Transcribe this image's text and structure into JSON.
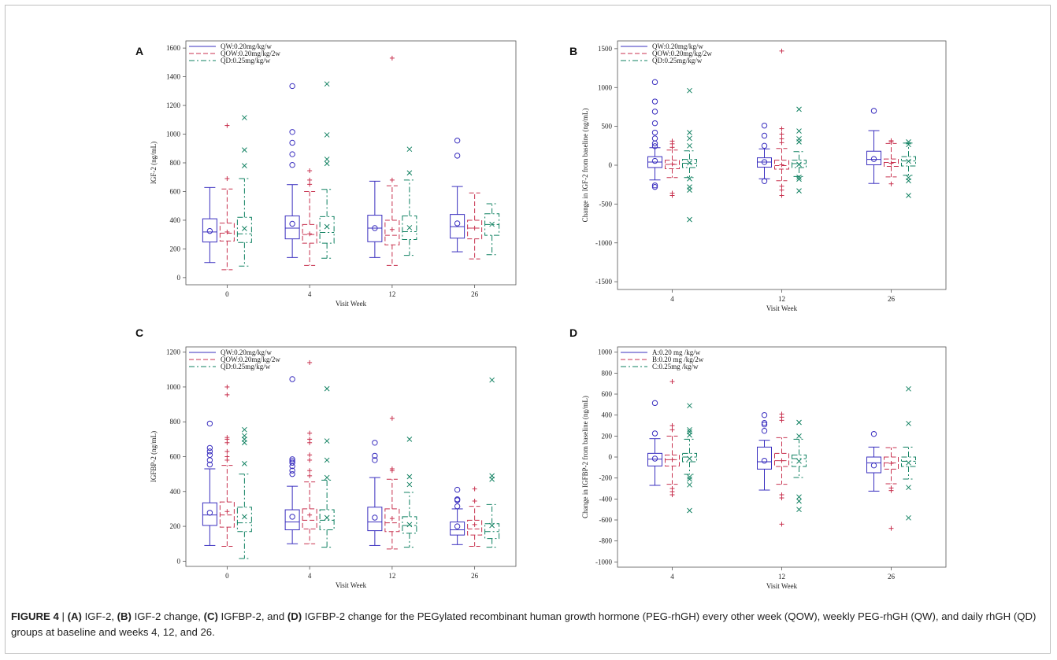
{
  "figure": {
    "caption": {
      "figure_label": "FIGURE 4",
      "separator": "|",
      "parts": [
        {
          "bold": "(A)",
          "text": " IGF-2, "
        },
        {
          "bold": "(B)",
          "text": " IGF-2 change, "
        },
        {
          "bold": "(C)",
          "text": " IGFBP-2, and "
        },
        {
          "bold": "(D)",
          "text": " IGFBP-2 change for the PEGylated recombinant human growth hormone (PEG-rhGH) every other week (QOW), weekly PEG-rhGH (QW), and daily rhGH (QD) groups at baseline and weeks 4, 12, and 26."
        }
      ]
    }
  },
  "colors": {
    "QW": "#3a2fbf",
    "QOW": "#c8324f",
    "QD": "#0f8060",
    "frame": "#555555"
  },
  "chart_data": [
    {
      "panel": "A",
      "type": "box",
      "ylabel": "IGF-2  (ng/mL)",
      "xlabel": "Visit Week",
      "ylim": [
        -50,
        1650
      ],
      "yticks": [
        0,
        200,
        400,
        600,
        800,
        1000,
        1200,
        1400,
        1600
      ],
      "categories": [
        "0",
        "4",
        "12",
        "26"
      ],
      "legend_position": "top-left",
      "series": [
        {
          "name": "QW:0.20mg/kg/w",
          "style": "solid",
          "marker": "circle",
          "boxes": [
            {
              "min": 105,
              "q1": 248,
              "median": 318,
              "q3": 410,
              "max": 628,
              "mean": 325,
              "outliers": []
            },
            {
              "min": 140,
              "q1": 270,
              "median": 345,
              "q3": 430,
              "max": 648,
              "mean": 375,
              "outliers": [
                785,
                860,
                940,
                1015,
                1335
              ]
            },
            {
              "min": 140,
              "q1": 250,
              "median": 345,
              "q3": 435,
              "max": 672,
              "mean": 345,
              "outliers": []
            },
            {
              "min": 180,
              "q1": 275,
              "median": 355,
              "q3": 440,
              "max": 635,
              "mean": 378,
              "outliers": [
                850,
                955
              ]
            }
          ]
        },
        {
          "name": "QOW:0.20mg/kg/2w",
          "style": "dashed",
          "marker": "plus",
          "boxes": [
            {
              "min": 55,
              "q1": 255,
              "median": 310,
              "q3": 380,
              "max": 618,
              "mean": 318,
              "outliers": [
                690,
                1060
              ]
            },
            {
              "min": 85,
              "q1": 240,
              "median": 300,
              "q3": 370,
              "max": 600,
              "mean": 305,
              "outliers": [
                650,
                680,
                745
              ]
            },
            {
              "min": 85,
              "q1": 228,
              "median": 295,
              "q3": 400,
              "max": 640,
              "mean": 335,
              "outliers": [
                680,
                1530
              ]
            },
            {
              "min": 130,
              "q1": 270,
              "median": 345,
              "q3": 400,
              "max": 590,
              "mean": 345,
              "outliers": []
            }
          ]
        },
        {
          "name": "QD:0.25mg/kg/w",
          "style": "dashdot",
          "marker": "x",
          "boxes": [
            {
              "min": 80,
              "q1": 245,
              "median": 305,
              "q3": 420,
              "max": 690,
              "mean": 342,
              "outliers": [
                780,
                890,
                1115
              ]
            },
            {
              "min": 135,
              "q1": 240,
              "median": 315,
              "q3": 425,
              "max": 615,
              "mean": 355,
              "outliers": [
                795,
                825,
                995,
                1350
              ]
            },
            {
              "min": 155,
              "q1": 265,
              "median": 320,
              "q3": 430,
              "max": 680,
              "mean": 348,
              "outliers": [
                730,
                895
              ]
            },
            {
              "min": 160,
              "q1": 295,
              "median": 370,
              "q3": 445,
              "max": 515,
              "mean": 372,
              "outliers": []
            }
          ]
        }
      ]
    },
    {
      "panel": "B",
      "type": "box",
      "ylabel": "Change in IGF-2 from baseline  (ng/mL)",
      "xlabel": "Visit Week",
      "ylim": [
        -1600,
        1600
      ],
      "yticks": [
        -1500,
        -1000,
        -500,
        0,
        500,
        1000,
        1500
      ],
      "categories": [
        "4",
        "12",
        "26"
      ],
      "legend_position": "top-left",
      "series": [
        {
          "name": "QW:0.20mg/kg/w",
          "style": "solid",
          "marker": "circle",
          "boxes": [
            {
              "min": -190,
              "q1": -30,
              "median": 40,
              "q3": 110,
              "max": 225,
              "mean": 55,
              "outliers": [
                -280,
                -260,
                245,
                280,
                345,
                420,
                540,
                690,
                820,
                1070
              ]
            },
            {
              "min": -175,
              "q1": -25,
              "median": 40,
              "q3": 95,
              "max": 210,
              "mean": 40,
              "outliers": [
                -205,
                250,
                380,
                510
              ]
            },
            {
              "min": -235,
              "q1": 5,
              "median": 75,
              "q3": 180,
              "max": 445,
              "mean": 80,
              "outliers": [
                700
              ]
            }
          ]
        },
        {
          "name": "QOW:0.20mg/kg/2w",
          "style": "dashed",
          "marker": "plus",
          "boxes": [
            {
              "min": -160,
              "q1": -45,
              "median": 10,
              "q3": 65,
              "max": 195,
              "mean": 15,
              "outliers": [
                -390,
                -360,
                230,
                275,
                310
              ]
            },
            {
              "min": -200,
              "q1": -50,
              "median": -5,
              "q3": 65,
              "max": 215,
              "mean": 5,
              "outliers": [
                -390,
                -320,
                -270,
                290,
                340,
                400,
                470,
                1470
              ]
            },
            {
              "min": -150,
              "q1": -15,
              "median": 35,
              "q3": 80,
              "max": 280,
              "mean": 25,
              "outliers": [
                -240,
                300,
                315
              ]
            }
          ]
        },
        {
          "name": "QD:0.25mg/kg/w",
          "style": "dashdot",
          "marker": "x",
          "boxes": [
            {
              "min": -160,
              "q1": -30,
              "median": 25,
              "q3": 75,
              "max": 185,
              "mean": 30,
              "outliers": [
                -700,
                -320,
                -280,
                -175,
                250,
                345,
                420,
                960
              ]
            },
            {
              "min": -145,
              "q1": -30,
              "median": 20,
              "q3": 65,
              "max": 175,
              "mean": 10,
              "outliers": [
                -330,
                -180,
                -155,
                300,
                340,
                440,
                720
              ]
            },
            {
              "min": -130,
              "q1": -10,
              "median": 55,
              "q3": 110,
              "max": 285,
              "mean": 50,
              "outliers": [
                -390,
                -200,
                -160,
                265,
                300
              ]
            }
          ]
        }
      ]
    },
    {
      "panel": "C",
      "type": "box",
      "ylabel": "IGFBP-2  (ng/mL)",
      "xlabel": "Visit Week",
      "ylim": [
        -30,
        1230
      ],
      "yticks": [
        0,
        200,
        400,
        600,
        800,
        1000,
        1200
      ],
      "categories": [
        "0",
        "4",
        "12",
        "26"
      ],
      "legend_position": "top-left",
      "series": [
        {
          "name": "QW:0.20mg/kg/w",
          "style": "solid",
          "marker": "circle",
          "boxes": [
            {
              "min": 90,
              "q1": 205,
              "median": 265,
              "q3": 335,
              "max": 530,
              "mean": 278,
              "outliers": [
                555,
                580,
                610,
                630,
                650,
                790
              ]
            },
            {
              "min": 100,
              "q1": 180,
              "median": 225,
              "q3": 295,
              "max": 430,
              "mean": 255,
              "outliers": [
                500,
                520,
                545,
                565,
                575,
                585,
                1045
              ]
            },
            {
              "min": 90,
              "q1": 175,
              "median": 225,
              "q3": 310,
              "max": 480,
              "mean": 250,
              "outliers": [
                580,
                605,
                680
              ]
            },
            {
              "min": 95,
              "q1": 150,
              "median": 180,
              "q3": 225,
              "max": 300,
              "mean": 200,
              "outliers": [
                315,
                350,
                355,
                410
              ]
            }
          ]
        },
        {
          "name": "QOW:0.20mg/kg/2w",
          "style": "dashed",
          "marker": "plus",
          "boxes": [
            {
              "min": 85,
              "q1": 195,
              "median": 265,
              "q3": 340,
              "max": 550,
              "mean": 285,
              "outliers": [
                580,
                600,
                630,
                680,
                700,
                710,
                955,
                1000
              ]
            },
            {
              "min": 100,
              "q1": 185,
              "median": 235,
              "q3": 300,
              "max": 455,
              "mean": 265,
              "outliers": [
                490,
                520,
                580,
                610,
                680,
                700,
                735,
                1140
              ]
            },
            {
              "min": 70,
              "q1": 170,
              "median": 220,
              "q3": 300,
              "max": 470,
              "mean": 245,
              "outliers": [
                520,
                530,
                820
              ]
            },
            {
              "min": 85,
              "q1": 150,
              "median": 185,
              "q3": 235,
              "max": 315,
              "mean": 210,
              "outliers": [
                345,
                415
              ]
            }
          ]
        },
        {
          "name": "QD:0.25mg/kg/w",
          "style": "dashdot",
          "marker": "x",
          "boxes": [
            {
              "min": 15,
              "q1": 170,
              "median": 220,
              "q3": 310,
              "max": 500,
              "mean": 255,
              "outliers": [
                560,
                680,
                700,
                720,
                755
              ]
            },
            {
              "min": 80,
              "q1": 180,
              "median": 235,
              "q3": 295,
              "max": 465,
              "mean": 250,
              "outliers": [
                480,
                580,
                690,
                990
              ]
            },
            {
              "min": 80,
              "q1": 160,
              "median": 205,
              "q3": 255,
              "max": 395,
              "mean": 210,
              "outliers": [
                440,
                485,
                700
              ]
            },
            {
              "min": 80,
              "q1": 130,
              "median": 170,
              "q3": 215,
              "max": 325,
              "mean": 205,
              "outliers": [
                470,
                490,
                1040
              ]
            }
          ]
        }
      ]
    },
    {
      "panel": "D",
      "type": "box",
      "ylabel": "Change in IGFBP-2 from baseline (ng/mL)",
      "xlabel": "Visit Week",
      "ylim": [
        -1050,
        1050
      ],
      "yticks": [
        -1000,
        -800,
        -600,
        -400,
        -200,
        0,
        200,
        400,
        600,
        800,
        1000
      ],
      "categories": [
        "4",
        "12",
        "26"
      ],
      "legend_position": "top-left",
      "series": [
        {
          "name": "A:0.20 mg /kg/w",
          "style": "solid",
          "marker": "circle",
          "boxes": [
            {
              "min": -270,
              "q1": -85,
              "median": -20,
              "q3": 35,
              "max": 175,
              "mean": -15,
              "outliers": [
                225,
                515
              ]
            },
            {
              "min": -315,
              "q1": -115,
              "median": -45,
              "q3": 95,
              "max": 160,
              "mean": -35,
              "outliers": [
                250,
                310,
                325,
                400
              ]
            },
            {
              "min": -325,
              "q1": -150,
              "median": -55,
              "q3": 0,
              "max": 95,
              "mean": -80,
              "outliers": [
                220
              ]
            }
          ]
        },
        {
          "name": "B:0.20 mg /kg/2w",
          "style": "dashed",
          "marker": "plus",
          "boxes": [
            {
              "min": -260,
              "q1": -85,
              "median": -25,
              "q3": 20,
              "max": 200,
              "mean": -25,
              "outliers": [
                -360,
                -330,
                -300,
                260,
                300,
                720
              ]
            },
            {
              "min": -260,
              "q1": -90,
              "median": -35,
              "q3": 35,
              "max": 185,
              "mean": -35,
              "outliers": [
                -640,
                -390,
                -360,
                350,
                380,
                410
              ]
            },
            {
              "min": -255,
              "q1": -115,
              "median": -55,
              "q3": 0,
              "max": 90,
              "mean": -60,
              "outliers": [
                -680,
                -320,
                -295
              ]
            }
          ]
        },
        {
          "name": "C:0.25mg /kg/w",
          "style": "dashdot",
          "marker": "x",
          "boxes": [
            {
              "min": -165,
              "q1": -45,
              "median": 0,
              "q3": 35,
              "max": 170,
              "mean": -15,
              "outliers": [
                -510,
                -265,
                -210,
                -190,
                210,
                240,
                260,
                490
              ]
            },
            {
              "min": -195,
              "q1": -90,
              "median": -15,
              "q3": 20,
              "max": 170,
              "mean": -40,
              "outliers": [
                -500,
                -420,
                -380,
                200,
                330
              ]
            },
            {
              "min": -210,
              "q1": -90,
              "median": -40,
              "q3": 0,
              "max": 95,
              "mean": -55,
              "outliers": [
                -580,
                -290,
                320,
                650
              ]
            }
          ]
        }
      ]
    }
  ]
}
